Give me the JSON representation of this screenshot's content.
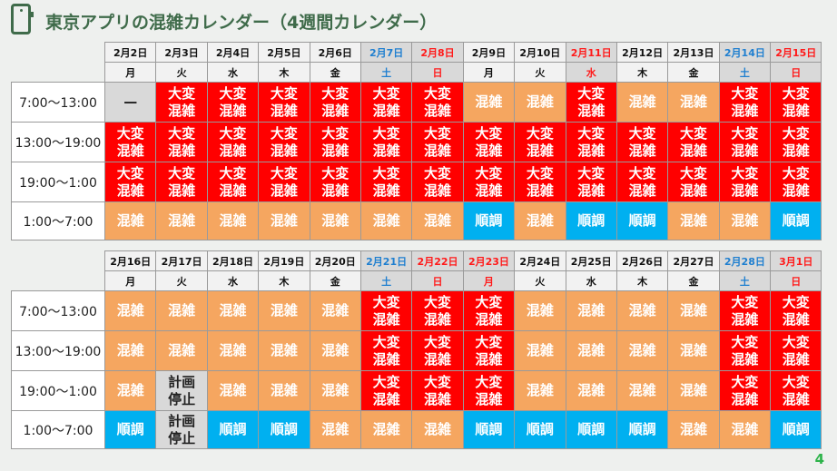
{
  "title": "東京アプリの混雑カレンダー（4週間カレンダー）",
  "page_number": "4",
  "legend_codes": {
    "D": "大変\n混雑",
    "K": "混雑",
    "J": "順調",
    "-": "—",
    "T": "計画\n停止"
  },
  "colors": {
    "very_crowded": "#ff0000",
    "crowded": "#f5a660",
    "smooth": "#00b0f0",
    "stopped": "#d9d9d9",
    "saturday": "#1f7fd0",
    "sunday_holiday": "#ff1a1a"
  },
  "time_slots": [
    "7:00～13:00",
    "13:00～19:00",
    "19:00～1:00",
    "1:00～7:00"
  ],
  "weeks": [
    {
      "dates": [
        "2月2日",
        "2月3日",
        "2月4日",
        "2月5日",
        "2月6日",
        "2月7日",
        "2月8日",
        "2月9日",
        "2月10日",
        "2月11日",
        "2月12日",
        "2月13日",
        "2月14日",
        "2月15日"
      ],
      "days": [
        "月",
        "火",
        "水",
        "木",
        "金",
        "土",
        "日",
        "月",
        "火",
        "水",
        "木",
        "金",
        "土",
        "日"
      ],
      "types": [
        "w",
        "w",
        "w",
        "w",
        "w",
        "sat",
        "sun",
        "w",
        "w",
        "hol",
        "w",
        "w",
        "sat",
        "sun"
      ],
      "rows": [
        [
          "-",
          "D",
          "D",
          "D",
          "D",
          "D",
          "D",
          "K",
          "K",
          "D",
          "K",
          "K",
          "D",
          "D"
        ],
        [
          "D",
          "D",
          "D",
          "D",
          "D",
          "D",
          "D",
          "D",
          "D",
          "D",
          "D",
          "D",
          "D",
          "D"
        ],
        [
          "D",
          "D",
          "D",
          "D",
          "D",
          "D",
          "D",
          "D",
          "D",
          "D",
          "D",
          "D",
          "D",
          "D"
        ],
        [
          "K",
          "K",
          "K",
          "K",
          "K",
          "K",
          "K",
          "J",
          "K",
          "J",
          "J",
          "K",
          "K",
          "J"
        ]
      ]
    },
    {
      "dates": [
        "2月16日",
        "2月17日",
        "2月18日",
        "2月19日",
        "2月20日",
        "2月21日",
        "2月22日",
        "2月23日",
        "2月24日",
        "2月25日",
        "2月26日",
        "2月27日",
        "2月28日",
        "3月1日"
      ],
      "days": [
        "月",
        "火",
        "水",
        "木",
        "金",
        "土",
        "日",
        "月",
        "火",
        "水",
        "木",
        "金",
        "土",
        "日"
      ],
      "types": [
        "w",
        "w",
        "w",
        "w",
        "w",
        "sat",
        "sun",
        "hol",
        "w",
        "w",
        "w",
        "w",
        "sat",
        "sun"
      ],
      "rows": [
        [
          "K",
          "K",
          "K",
          "K",
          "K",
          "D",
          "D",
          "D",
          "K",
          "K",
          "K",
          "K",
          "D",
          "D"
        ],
        [
          "K",
          "K",
          "K",
          "K",
          "K",
          "D",
          "D",
          "D",
          "K",
          "K",
          "K",
          "K",
          "D",
          "D"
        ],
        [
          "K",
          "T",
          "K",
          "K",
          "K",
          "D",
          "D",
          "D",
          "K",
          "K",
          "K",
          "K",
          "D",
          "D"
        ],
        [
          "J",
          "T",
          "J",
          "J",
          "K",
          "K",
          "K",
          "J",
          "J",
          "J",
          "J",
          "K",
          "K",
          "J"
        ]
      ]
    }
  ]
}
